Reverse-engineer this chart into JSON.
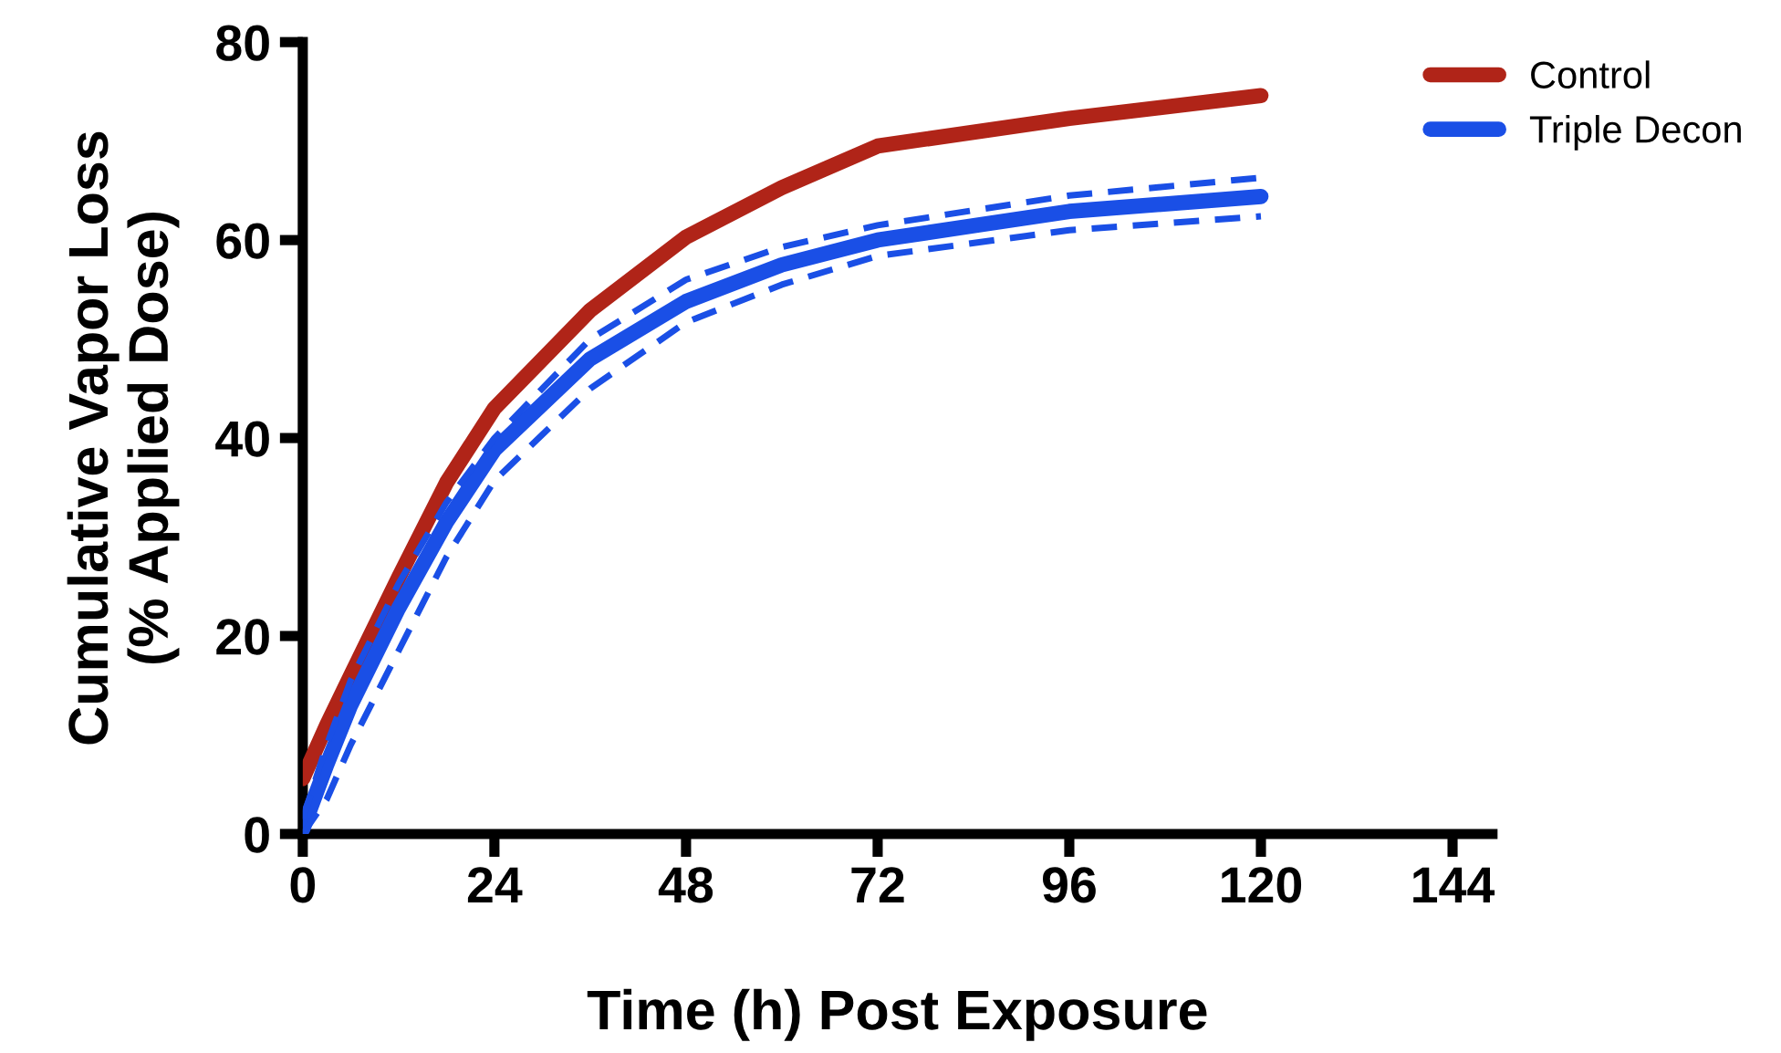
{
  "chart_data": {
    "type": "line",
    "xlabel": "Time (h) Post Exposure",
    "ylabel": "Cumulative Vapor Loss\n(% Applied Dose)",
    "xlim": [
      0,
      149
    ],
    "xticks": [
      0,
      24,
      48,
      72,
      96,
      120,
      144
    ],
    "ylim": [
      0,
      80
    ],
    "yticks": [
      0,
      20,
      40,
      60,
      80
    ],
    "grid": false,
    "legend": "top right",
    "marker": "none",
    "line_style": "solid",
    "series": [
      {
        "name": "Control",
        "color": "#b02418",
        "x": [
          0,
          3,
          6,
          12,
          18,
          24,
          36,
          48,
          60,
          72,
          96,
          120
        ],
        "values": [
          5.6,
          11,
          16,
          25.9,
          35.5,
          43,
          52.9,
          60.3,
          65.3,
          69.5,
          72.3,
          74.6
        ]
      },
      {
        "name": "Triple Decon",
        "color": "#1a4fe6",
        "x": [
          0,
          3,
          6,
          12,
          18,
          24,
          36,
          48,
          60,
          72,
          96,
          120
        ],
        "values": [
          0.5,
          7,
          13,
          22.8,
          31.5,
          38.8,
          48,
          53.8,
          57.5,
          60,
          62.9,
          64.4
        ],
        "line_style": "solid"
      },
      {
        "color": "#1a4fe6",
        "line_style": "dashed",
        "x": [
          0,
          3,
          6,
          12,
          18,
          24,
          36,
          48,
          60,
          72,
          96,
          120
        ],
        "values": [
          0,
          3.5,
          9,
          18.5,
          28,
          35.7,
          45,
          51.7,
          55.5,
          58.4,
          61,
          62.4
        ]
      },
      {
        "color": "#1a4fe6",
        "line_style": "dashed",
        "x": [
          0,
          3,
          6,
          12,
          18,
          24,
          36,
          48,
          60,
          72,
          96,
          120
        ],
        "values": [
          1.5,
          9,
          15.5,
          25.3,
          33.5,
          40,
          50,
          56,
          59.3,
          61.5,
          64.5,
          66.3
        ]
      }
    ]
  }
}
